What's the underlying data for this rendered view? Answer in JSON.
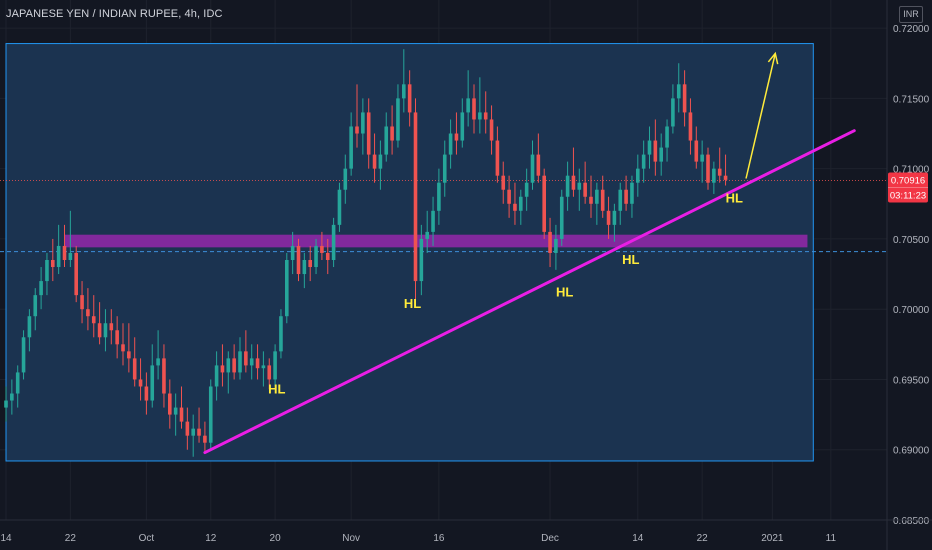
{
  "header": {
    "title": "JAPANESE YEN / INDIAN RUPEE, 4h, IDC",
    "currency_label": "INR"
  },
  "price_badge": {
    "price": "0.70916",
    "countdown": "03:11:23",
    "color": "#f23645"
  },
  "colors": {
    "background": "#131722",
    "box_fill": "#1b3350",
    "box_border": "#2196f3",
    "zone": "#9c27b0",
    "trendline": "#e91ee5",
    "arrow": "#ffeb3b",
    "label": "#ffeb3b",
    "up": "#26a69a",
    "down": "#ef5350",
    "axis_text": "#b2b5be"
  },
  "chart_data": {
    "type": "candlestick",
    "title": "JAPANESE YEN / INDIAN RUPEE, 4h, IDC",
    "ylim": [
      0.685,
      0.722
    ],
    "y_ticks": [
      "0.72000",
      "0.71500",
      "0.71000",
      "0.70500",
      "0.70000",
      "0.69500",
      "0.69000",
      "0.68500"
    ],
    "y_tick_values": [
      0.72,
      0.715,
      0.71,
      0.705,
      0.7,
      0.695,
      0.69,
      0.685
    ],
    "x_ticks": [
      "14",
      "22",
      "Oct",
      "12",
      "20",
      "Nov",
      "16",
      "Dec",
      "14",
      "22",
      "2021",
      "11"
    ],
    "x_tick_bars": [
      0,
      11,
      24,
      35,
      46,
      59,
      74,
      93,
      108,
      119,
      131,
      141
    ],
    "range_box": {
      "top": 0.7189,
      "bottom": 0.6892,
      "start_bar": 0,
      "end_bar": 138
    },
    "zone": {
      "top": 0.7053,
      "bottom": 0.7044,
      "start_bar": 10,
      "end_bar": 137
    },
    "dashed_level": 0.7041,
    "current_price": 0.70916,
    "trendline": {
      "from_bar": 34,
      "from_price": 0.6898,
      "to_bar": 145,
      "to_price": 0.7127
    },
    "projection_arrow": {
      "from_bar": 126.5,
      "from_price": 0.7093,
      "to_bar": 131.5,
      "to_price": 0.7182
    },
    "annotations": [
      {
        "text": "HL",
        "bar": 46.3,
        "price": 0.694
      },
      {
        "text": "HL",
        "bar": 69.5,
        "price": 0.7001
      },
      {
        "text": "HL",
        "bar": 95.5,
        "price": 0.7009
      },
      {
        "text": "HL",
        "bar": 106.8,
        "price": 0.7032
      },
      {
        "text": "HL",
        "bar": 124.5,
        "price": 0.7076
      }
    ],
    "candles": [
      [
        0.693,
        0.6945,
        0.692,
        0.6935
      ],
      [
        0.6935,
        0.695,
        0.6925,
        0.694
      ],
      [
        0.694,
        0.696,
        0.693,
        0.6955
      ],
      [
        0.6955,
        0.6985,
        0.695,
        0.698
      ],
      [
        0.698,
        0.7,
        0.697,
        0.6995
      ],
      [
        0.6995,
        0.7015,
        0.6985,
        0.701
      ],
      [
        0.701,
        0.703,
        0.7,
        0.702
      ],
      [
        0.702,
        0.704,
        0.701,
        0.7035
      ],
      [
        0.7035,
        0.705,
        0.702,
        0.703
      ],
      [
        0.703,
        0.706,
        0.7025,
        0.7045
      ],
      [
        0.7045,
        0.706,
        0.703,
        0.7035
      ],
      [
        0.7035,
        0.707,
        0.703,
        0.704
      ],
      [
        0.704,
        0.7045,
        0.7005,
        0.701
      ],
      [
        0.701,
        0.702,
        0.699,
        0.7
      ],
      [
        0.7,
        0.7015,
        0.6985,
        0.6995
      ],
      [
        0.6995,
        0.701,
        0.698,
        0.699
      ],
      [
        0.699,
        0.7005,
        0.6975,
        0.698
      ],
      [
        0.698,
        0.7,
        0.697,
        0.699
      ],
      [
        0.699,
        0.7,
        0.6975,
        0.6985
      ],
      [
        0.6985,
        0.6995,
        0.6965,
        0.6975
      ],
      [
        0.6975,
        0.699,
        0.696,
        0.697
      ],
      [
        0.697,
        0.699,
        0.6955,
        0.6965
      ],
      [
        0.6965,
        0.698,
        0.6945,
        0.695
      ],
      [
        0.695,
        0.6965,
        0.6935,
        0.6945
      ],
      [
        0.6945,
        0.6955,
        0.6925,
        0.6935
      ],
      [
        0.6935,
        0.6975,
        0.693,
        0.696
      ],
      [
        0.696,
        0.6985,
        0.695,
        0.6965
      ],
      [
        0.6965,
        0.6975,
        0.693,
        0.694
      ],
      [
        0.694,
        0.695,
        0.6915,
        0.6925
      ],
      [
        0.6925,
        0.694,
        0.691,
        0.693
      ],
      [
        0.693,
        0.6945,
        0.6915,
        0.692
      ],
      [
        0.692,
        0.693,
        0.69,
        0.691
      ],
      [
        0.691,
        0.6925,
        0.6895,
        0.6915
      ],
      [
        0.6915,
        0.693,
        0.6905,
        0.691
      ],
      [
        0.691,
        0.692,
        0.6898,
        0.6905
      ],
      [
        0.6905,
        0.695,
        0.69,
        0.6945
      ],
      [
        0.6945,
        0.697,
        0.6935,
        0.696
      ],
      [
        0.696,
        0.6975,
        0.6945,
        0.6955
      ],
      [
        0.6955,
        0.697,
        0.694,
        0.6965
      ],
      [
        0.6965,
        0.6975,
        0.695,
        0.6955
      ],
      [
        0.6955,
        0.698,
        0.695,
        0.697
      ],
      [
        0.697,
        0.6985,
        0.6955,
        0.696
      ],
      [
        0.696,
        0.6975,
        0.695,
        0.6965
      ],
      [
        0.6965,
        0.6975,
        0.695,
        0.6958
      ],
      [
        0.6958,
        0.697,
        0.6945,
        0.696
      ],
      [
        0.696,
        0.6965,
        0.6943,
        0.695
      ],
      [
        0.695,
        0.6975,
        0.6945,
        0.697
      ],
      [
        0.697,
        0.7,
        0.6965,
        0.6995
      ],
      [
        0.6995,
        0.704,
        0.699,
        0.7035
      ],
      [
        0.7035,
        0.7055,
        0.7025,
        0.7045
      ],
      [
        0.7045,
        0.705,
        0.702,
        0.7025
      ],
      [
        0.7025,
        0.704,
        0.7015,
        0.7035
      ],
      [
        0.7035,
        0.7045,
        0.702,
        0.703
      ],
      [
        0.703,
        0.705,
        0.7025,
        0.7045
      ],
      [
        0.7045,
        0.7055,
        0.7035,
        0.704
      ],
      [
        0.704,
        0.705,
        0.7025,
        0.7035
      ],
      [
        0.7035,
        0.7065,
        0.703,
        0.706
      ],
      [
        0.706,
        0.709,
        0.7055,
        0.7085
      ],
      [
        0.7085,
        0.711,
        0.7075,
        0.71
      ],
      [
        0.71,
        0.714,
        0.7095,
        0.713
      ],
      [
        0.713,
        0.716,
        0.7115,
        0.7125
      ],
      [
        0.7125,
        0.715,
        0.711,
        0.714
      ],
      [
        0.714,
        0.715,
        0.71,
        0.711
      ],
      [
        0.711,
        0.7125,
        0.709,
        0.71
      ],
      [
        0.71,
        0.712,
        0.7085,
        0.711
      ],
      [
        0.711,
        0.714,
        0.7105,
        0.713
      ],
      [
        0.713,
        0.7145,
        0.711,
        0.712
      ],
      [
        0.712,
        0.716,
        0.7115,
        0.715
      ],
      [
        0.715,
        0.7185,
        0.714,
        0.716
      ],
      [
        0.716,
        0.717,
        0.713,
        0.714
      ],
      [
        0.714,
        0.715,
        0.7005,
        0.702
      ],
      [
        0.702,
        0.706,
        0.701,
        0.705
      ],
      [
        0.705,
        0.707,
        0.704,
        0.7055
      ],
      [
        0.7055,
        0.708,
        0.7045,
        0.707
      ],
      [
        0.707,
        0.71,
        0.706,
        0.709
      ],
      [
        0.709,
        0.712,
        0.708,
        0.711
      ],
      [
        0.711,
        0.7135,
        0.71,
        0.7125
      ],
      [
        0.7125,
        0.714,
        0.711,
        0.712
      ],
      [
        0.712,
        0.715,
        0.7115,
        0.714
      ],
      [
        0.714,
        0.717,
        0.713,
        0.715
      ],
      [
        0.715,
        0.716,
        0.7125,
        0.7135
      ],
      [
        0.7135,
        0.7165,
        0.7125,
        0.714
      ],
      [
        0.714,
        0.7155,
        0.7125,
        0.7135
      ],
      [
        0.7135,
        0.7145,
        0.711,
        0.712
      ],
      [
        0.712,
        0.713,
        0.709,
        0.7095
      ],
      [
        0.7095,
        0.7105,
        0.7075,
        0.7085
      ],
      [
        0.7085,
        0.7095,
        0.7065,
        0.7075
      ],
      [
        0.7075,
        0.709,
        0.706,
        0.707
      ],
      [
        0.707,
        0.7085,
        0.706,
        0.708
      ],
      [
        0.708,
        0.71,
        0.707,
        0.709
      ],
      [
        0.709,
        0.712,
        0.7085,
        0.711
      ],
      [
        0.711,
        0.7125,
        0.709,
        0.7095
      ],
      [
        0.7095,
        0.71,
        0.705,
        0.7055
      ],
      [
        0.7055,
        0.7065,
        0.703,
        0.704
      ],
      [
        0.704,
        0.706,
        0.7028,
        0.705
      ],
      [
        0.705,
        0.7085,
        0.7045,
        0.708
      ],
      [
        0.708,
        0.7105,
        0.707,
        0.7095
      ],
      [
        0.7095,
        0.7115,
        0.708,
        0.7085
      ],
      [
        0.7085,
        0.71,
        0.707,
        0.709
      ],
      [
        0.709,
        0.7105,
        0.7075,
        0.708
      ],
      [
        0.708,
        0.7095,
        0.7065,
        0.7075
      ],
      [
        0.7075,
        0.709,
        0.706,
        0.7085
      ],
      [
        0.7085,
        0.7095,
        0.7065,
        0.707
      ],
      [
        0.707,
        0.708,
        0.705,
        0.706
      ],
      [
        0.706,
        0.7075,
        0.7048,
        0.707
      ],
      [
        0.707,
        0.709,
        0.706,
        0.7085
      ],
      [
        0.7085,
        0.7095,
        0.707,
        0.7075
      ],
      [
        0.7075,
        0.7095,
        0.7065,
        0.709
      ],
      [
        0.709,
        0.711,
        0.708,
        0.71
      ],
      [
        0.71,
        0.712,
        0.709,
        0.711
      ],
      [
        0.711,
        0.713,
        0.71,
        0.712
      ],
      [
        0.712,
        0.7135,
        0.7095,
        0.7105
      ],
      [
        0.7105,
        0.7125,
        0.7095,
        0.7115
      ],
      [
        0.7115,
        0.7135,
        0.7105,
        0.713
      ],
      [
        0.713,
        0.716,
        0.7125,
        0.715
      ],
      [
        0.715,
        0.7175,
        0.714,
        0.716
      ],
      [
        0.716,
        0.717,
        0.713,
        0.714
      ],
      [
        0.714,
        0.715,
        0.711,
        0.712
      ],
      [
        0.712,
        0.713,
        0.71,
        0.7105
      ],
      [
        0.7105,
        0.712,
        0.709,
        0.711
      ],
      [
        0.711,
        0.7115,
        0.7085,
        0.709
      ],
      [
        0.709,
        0.7105,
        0.7082,
        0.71
      ],
      [
        0.71,
        0.7115,
        0.709,
        0.7095
      ],
      [
        0.7095,
        0.711,
        0.7088,
        0.7092
      ]
    ]
  }
}
